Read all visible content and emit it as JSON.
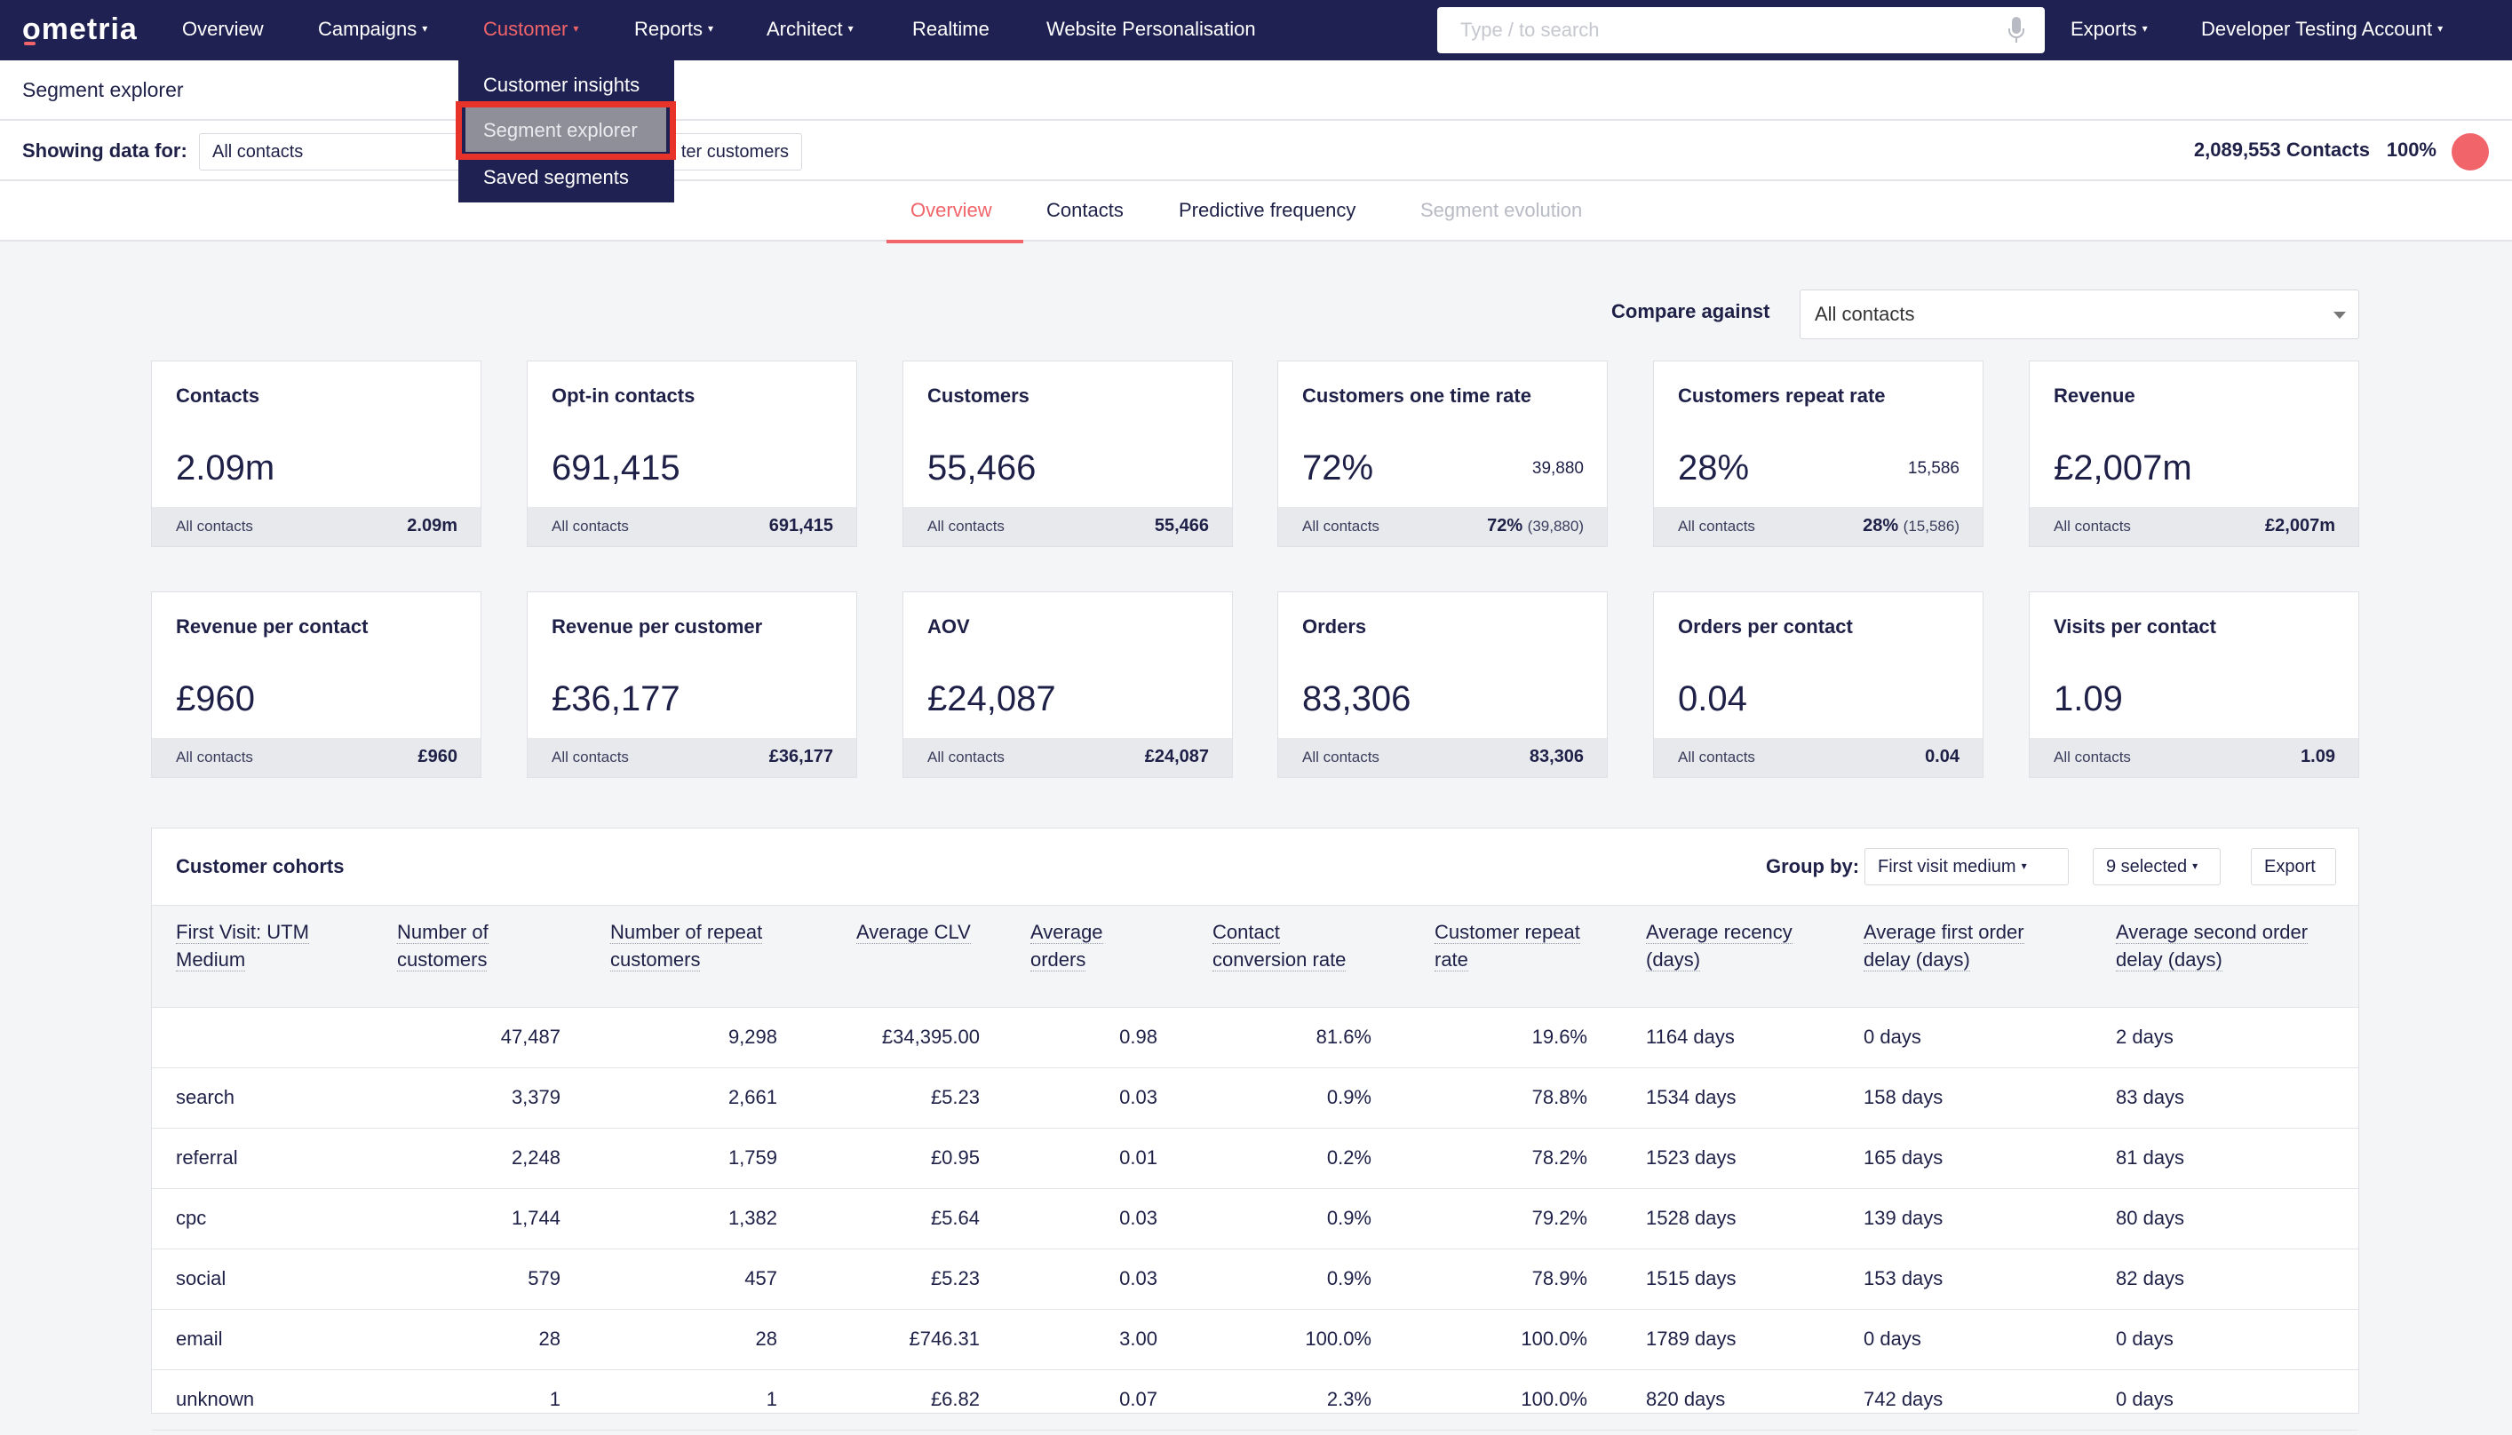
{
  "nav": {
    "logo": "ometria",
    "items": [
      "Overview",
      "Campaigns",
      "Customer",
      "Reports",
      "Architect",
      "Realtime",
      "Website Personalisation"
    ],
    "search_placeholder": "Type / to search",
    "exports": "Exports",
    "account": "Developer Testing Account"
  },
  "dropdown": {
    "items": [
      "Customer insights",
      "Segment explorer",
      "Saved segments"
    ]
  },
  "page_title": "Segment explorer",
  "filter": {
    "label": "Showing data for:",
    "segment": "All contacts",
    "chip_text": "ter customers",
    "contacts": "2,089,553 Contacts",
    "percent": "100%"
  },
  "tabs": [
    "Overview",
    "Contacts",
    "Predictive frequency",
    "Segment evolution"
  ],
  "compare": {
    "label": "Compare against",
    "value": "All contacts"
  },
  "cards": [
    {
      "title": "Contacts",
      "value": "2.09m",
      "sub": "",
      "foot_label": "All contacts",
      "foot_value": "2.09m",
      "foot_muted": ""
    },
    {
      "title": "Opt-in contacts",
      "value": "691,415",
      "sub": "",
      "foot_label": "All contacts",
      "foot_value": "691,415",
      "foot_muted": ""
    },
    {
      "title": "Customers",
      "value": "55,466",
      "sub": "",
      "foot_label": "All contacts",
      "foot_value": "55,466",
      "foot_muted": ""
    },
    {
      "title": "Customers one time rate",
      "value": "72%",
      "sub": "39,880",
      "foot_label": "All contacts",
      "foot_value": "72%",
      "foot_muted": "(39,880)"
    },
    {
      "title": "Customers repeat rate",
      "value": "28%",
      "sub": "15,586",
      "foot_label": "All contacts",
      "foot_value": "28%",
      "foot_muted": "(15,586)"
    },
    {
      "title": "Revenue",
      "value": "£2,007m",
      "sub": "",
      "foot_label": "All contacts",
      "foot_value": "£2,007m",
      "foot_muted": ""
    },
    {
      "title": "Revenue per contact",
      "value": "£960",
      "sub": "",
      "foot_label": "All contacts",
      "foot_value": "£960",
      "foot_muted": ""
    },
    {
      "title": "Revenue per customer",
      "value": "£36,177",
      "sub": "",
      "foot_label": "All contacts",
      "foot_value": "£36,177",
      "foot_muted": ""
    },
    {
      "title": "AOV",
      "value": "£24,087",
      "sub": "",
      "foot_label": "All contacts",
      "foot_value": "£24,087",
      "foot_muted": ""
    },
    {
      "title": "Orders",
      "value": "83,306",
      "sub": "",
      "foot_label": "All contacts",
      "foot_value": "83,306",
      "foot_muted": ""
    },
    {
      "title": "Orders per contact",
      "value": "0.04",
      "sub": "",
      "foot_label": "All contacts",
      "foot_value": "0.04",
      "foot_muted": ""
    },
    {
      "title": "Visits per contact",
      "value": "1.09",
      "sub": "",
      "foot_label": "All contacts",
      "foot_value": "1.09",
      "foot_muted": ""
    }
  ],
  "cohorts": {
    "title": "Customer cohorts",
    "group_by_label": "Group by:",
    "group_by_value": "First visit medium",
    "selected": "9 selected",
    "export": "Export",
    "headers": [
      [
        "First Visit: UTM",
        "Medium"
      ],
      [
        "Number of",
        "customers"
      ],
      [
        "Number of repeat",
        "customers"
      ],
      [
        "Average CLV",
        ""
      ],
      [
        "Average",
        "orders"
      ],
      [
        "Contact",
        "conversion rate"
      ],
      [
        "Customer repeat",
        "rate"
      ],
      [
        "Average recency",
        "(days)"
      ],
      [
        "Average first order",
        "delay (days)"
      ],
      [
        "Average second order",
        "delay (days)"
      ]
    ],
    "rows": [
      [
        "",
        "47,487",
        "9,298",
        "£34,395.00",
        "0.98",
        "81.6%",
        "19.6%",
        "1164 days",
        "0 days",
        "2 days"
      ],
      [
        "search",
        "3,379",
        "2,661",
        "£5.23",
        "0.03",
        "0.9%",
        "78.8%",
        "1534 days",
        "158 days",
        "83 days"
      ],
      [
        "referral",
        "2,248",
        "1,759",
        "£0.95",
        "0.01",
        "0.2%",
        "78.2%",
        "1523 days",
        "165 days",
        "81 days"
      ],
      [
        "cpc",
        "1,744",
        "1,382",
        "£5.64",
        "0.03",
        "0.9%",
        "79.2%",
        "1528 days",
        "139 days",
        "80 days"
      ],
      [
        "social",
        "579",
        "457",
        "£5.23",
        "0.03",
        "0.9%",
        "78.9%",
        "1515 days",
        "153 days",
        "82 days"
      ],
      [
        "email",
        "28",
        "28",
        "£746.31",
        "3.00",
        "100.0%",
        "100.0%",
        "1789 days",
        "0 days",
        "0 days"
      ],
      [
        "unknown",
        "1",
        "1",
        "£6.82",
        "0.07",
        "2.3%",
        "100.0%",
        "820 days",
        "742 days",
        "0 days"
      ]
    ]
  },
  "colors": {
    "nav_bg": "#1f2152",
    "accent": "#f0646a",
    "highlight_border": "#e8332a"
  }
}
